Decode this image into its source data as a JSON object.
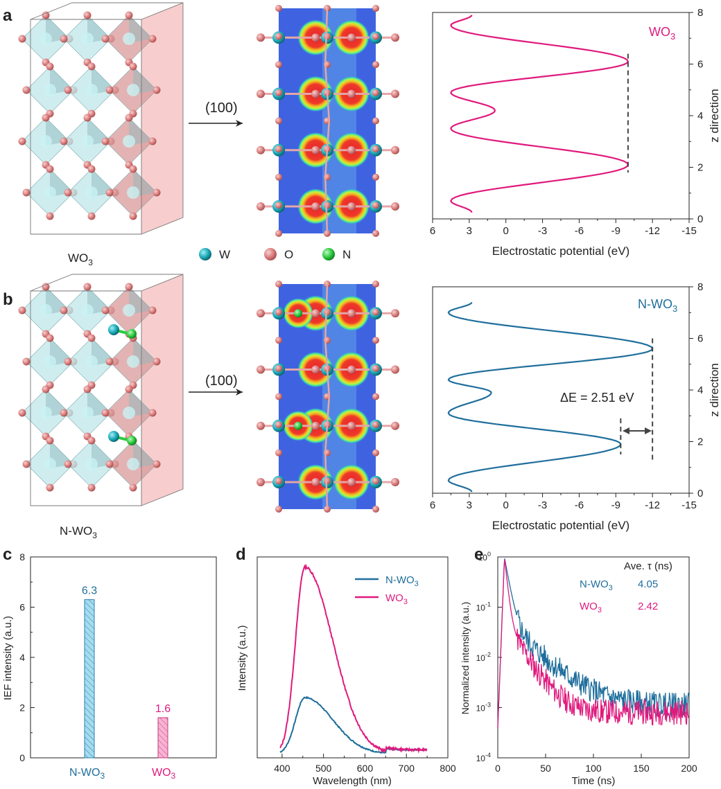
{
  "panels": {
    "a": {
      "label": "a",
      "struct_label": "WO",
      "struct_sub": "3",
      "plane": "(100)",
      "legend": [
        {
          "name": "W",
          "color": "#2fb6c2"
        },
        {
          "name": "O",
          "color": "#e58c8c"
        },
        {
          "name": "N",
          "color": "#2ecc40"
        }
      ]
    },
    "b": {
      "label": "b",
      "struct_label": "N-WO",
      "struct_sub": "3",
      "plane": "(100)",
      "delta_e": "ΔE = 2.51 eV"
    },
    "c": {
      "label": "c"
    },
    "d": {
      "label": "d"
    },
    "e": {
      "label": "e"
    }
  },
  "colors": {
    "pink": "#e0197d",
    "blue": "#1f6e9c",
    "cyan_bar": "#9fd9ee",
    "pink_bar": "#f6a9cc"
  },
  "chart_data": [
    {
      "id": "a-potential",
      "type": "line",
      "series": [
        {
          "name": "WO3",
          "label": "WO",
          "sub": "3",
          "color": "#e0197d",
          "peaks_z": [
            0.7,
            2.1,
            3.5,
            4.2,
            4.9,
            6.1,
            7.5
          ],
          "peaks_v": [
            4.5,
            -10,
            4.5,
            0.9,
            4.5,
            -10,
            4.5
          ]
        }
      ],
      "xlabel": "Electrostatic potential (eV)",
      "ylabel": "z direction",
      "xlim": [
        6,
        -15
      ],
      "ylim": [
        0,
        8
      ],
      "xticks": [
        "6",
        "3",
        "0",
        "-3",
        "-6",
        "-9",
        "-12",
        "-15"
      ],
      "yticks": [
        "0",
        "2",
        "4",
        "6",
        "8"
      ]
    },
    {
      "id": "b-potential",
      "type": "line",
      "series": [
        {
          "name": "N-WO3",
          "label": "N-WO",
          "sub": "3",
          "color": "#1f6e9c",
          "peaks_z": [
            0.5,
            1.9,
            3.1,
            3.9,
            4.4,
            5.6,
            7.0
          ],
          "peaks_v": [
            4.7,
            -9.4,
            4.7,
            1.2,
            4.7,
            -12,
            4.7
          ]
        }
      ],
      "xlabel": "Electrostatic potential (eV)",
      "ylabel": "z direction",
      "xlim": [
        6,
        -15
      ],
      "ylim": [
        0,
        8
      ],
      "xticks": [
        "6",
        "3",
        "0",
        "-3",
        "-6",
        "-9",
        "-12",
        "-15"
      ],
      "yticks": [
        "0",
        "2",
        "4",
        "6",
        "8"
      ]
    },
    {
      "id": "c-ief",
      "type": "bar",
      "categories": [
        "N-WO3",
        "WO3"
      ],
      "cat_labels": [
        {
          "main": "N-WO",
          "sub": "3"
        },
        {
          "main": "WO",
          "sub": "3"
        }
      ],
      "values": [
        6.3,
        1.6
      ],
      "value_labels": [
        "6.3",
        "1.6"
      ],
      "ylabel": "IEF intensity (a.u.)",
      "ylim": [
        0,
        8
      ],
      "yticks": [
        "0",
        "2",
        "4",
        "6",
        "8"
      ]
    },
    {
      "id": "d-pl",
      "type": "line",
      "series": [
        {
          "name": "N-WO3",
          "label": "N-WO",
          "sub": "3",
          "color": "#1f6e9c",
          "peak_x": 455,
          "peak_y": 0.28
        },
        {
          "name": "WO3",
          "label": "WO",
          "sub": "3",
          "color": "#e0197d",
          "peak_x": 455,
          "peak_y": 0.93
        }
      ],
      "xlabel": "Wavelength (nm)",
      "ylabel": "Intensity (a.u.)",
      "xlim": [
        340,
        800
      ],
      "xticks": [
        "400",
        "500",
        "600",
        "700",
        "800"
      ]
    },
    {
      "id": "e-trpl",
      "type": "line",
      "series": [
        {
          "name": "N-WO3",
          "label": "N-WO",
          "sub": "3",
          "color": "#1f6e9c",
          "tau": "4.05"
        },
        {
          "name": "WO3",
          "label": "WO",
          "sub": "3",
          "color": "#e0197d",
          "tau": "2.42"
        }
      ],
      "header": "Ave. τ (ns)",
      "xlabel": "Time (ns)",
      "ylabel": "Normalized intensity (a.u.)",
      "xlim": [
        0,
        200
      ],
      "ylim_log": [
        -4,
        0
      ],
      "xticks": [
        "0",
        "50",
        "100",
        "150",
        "200"
      ],
      "yticks": [
        {
          "b": "10",
          "e": "-4"
        },
        {
          "b": "10",
          "e": "-3"
        },
        {
          "b": "10",
          "e": "-2"
        },
        {
          "b": "10",
          "e": "-1"
        },
        {
          "b": "10",
          "e": "0"
        }
      ]
    }
  ]
}
